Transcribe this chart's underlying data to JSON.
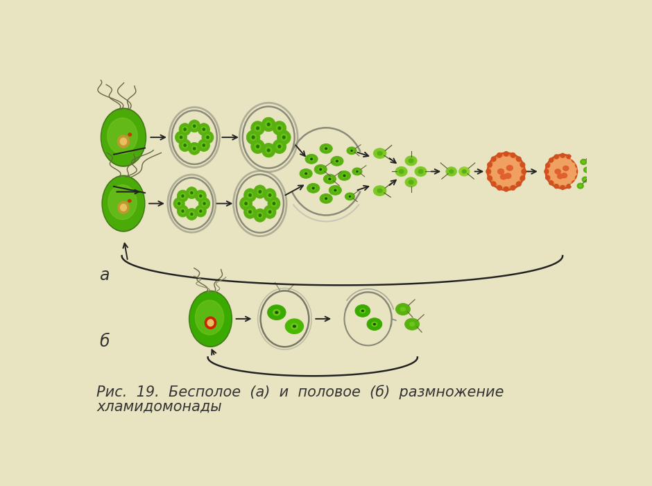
{
  "background_color": "#e8e3c0",
  "caption_line1": "Рис.  19.  Бесполое  (а)  и  половое  (б)  размножение",
  "caption_line2": "хламидомонады",
  "label_a": "а",
  "label_b": "б",
  "caption_fontsize": 15,
  "label_fontsize": 17,
  "figwidth": 9.4,
  "figheight": 7.01,
  "dpi": 100,
  "green_light": "#7dc828",
  "green_dark": "#3a8a00",
  "green_mid": "#5ab010",
  "green_cell": "#68c818",
  "green_deep": "#2a6a00",
  "nucleus_color": "#c8a030",
  "nucleus_dark": "#a07820",
  "gray_shell": "#8a8a7a",
  "gray_shell2": "#aaaaaa",
  "orange_zyg": "#e07030",
  "orange_zyg2": "#d05020",
  "arrow_color": "#222222",
  "text_color": "#333333"
}
